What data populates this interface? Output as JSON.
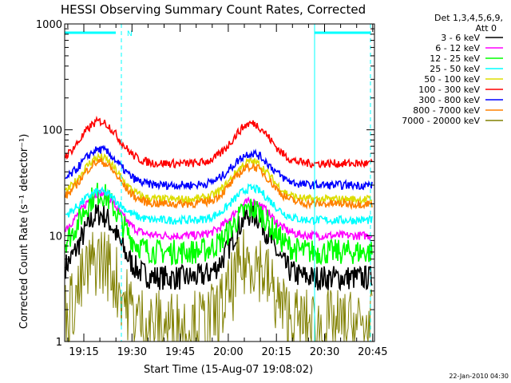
{
  "chart_data": {
    "type": "line",
    "title": "HESSI Observing Summary Count Rates, Corrected",
    "xlabel": "Start Time (15-Aug-07 19:08:02)",
    "ylabel": "Corrected Count Rate (s⁻¹ detector⁻¹)",
    "yscale": "log",
    "ylim": [
      1,
      1000
    ],
    "y_ticks": [
      {
        "value": 1,
        "label": "1"
      },
      {
        "value": 10,
        "label": "10"
      },
      {
        "value": 100,
        "label": "100"
      },
      {
        "value": 1000,
        "label": "1000"
      }
    ],
    "x_ticks": [
      {
        "label": "19:15"
      },
      {
        "label": "19:30"
      },
      {
        "label": "19:45"
      },
      {
        "label": "20:00"
      },
      {
        "label": "20:15"
      },
      {
        "label": "20:30"
      },
      {
        "label": "20:45"
      }
    ],
    "legend": {
      "position": "right",
      "header_line1": "Det 1,3,4,5,6,9,",
      "header_line2": "Att 0"
    },
    "series": [
      {
        "name": "3 - 6 keV",
        "color": "#000000",
        "quiet": 4,
        "peak1": 16,
        "peak2": 16
      },
      {
        "name": "6 - 12 keV",
        "color": "#ff00ff",
        "quiet": 10,
        "peak1": 25,
        "peak2": 21
      },
      {
        "name": "12 - 25 keV",
        "color": "#00ff00",
        "quiet": 7,
        "peak1": 25,
        "peak2": 18
      },
      {
        "name": "25 - 50 keV",
        "color": "#00ffff",
        "quiet": 14,
        "peak1": 26,
        "peak2": 28
      },
      {
        "name": "50 - 100 keV",
        "color": "#dddd00",
        "quiet": 22,
        "peak1": 55,
        "peak2": 50
      },
      {
        "name": "100 - 300 keV",
        "color": "#ff0000",
        "quiet": 48,
        "peak1": 120,
        "peak2": 115
      },
      {
        "name": "300 - 800 keV",
        "color": "#0000ff",
        "quiet": 30,
        "peak1": 65,
        "peak2": 60
      },
      {
        "name": "800 - 7000 keV",
        "color": "#ff8000",
        "quiet": 20,
        "peak1": 50,
        "peak2": 45
      },
      {
        "name": "7000 - 20000 keV",
        "color": "#808000",
        "quiet": 1.4,
        "peak1": 6,
        "peak2": 6
      }
    ],
    "annotations": {
      "flag_letter": "N",
      "flag_color": "#00ffff"
    }
  },
  "footer": {
    "date": "22-Jan-2010 04:30"
  }
}
